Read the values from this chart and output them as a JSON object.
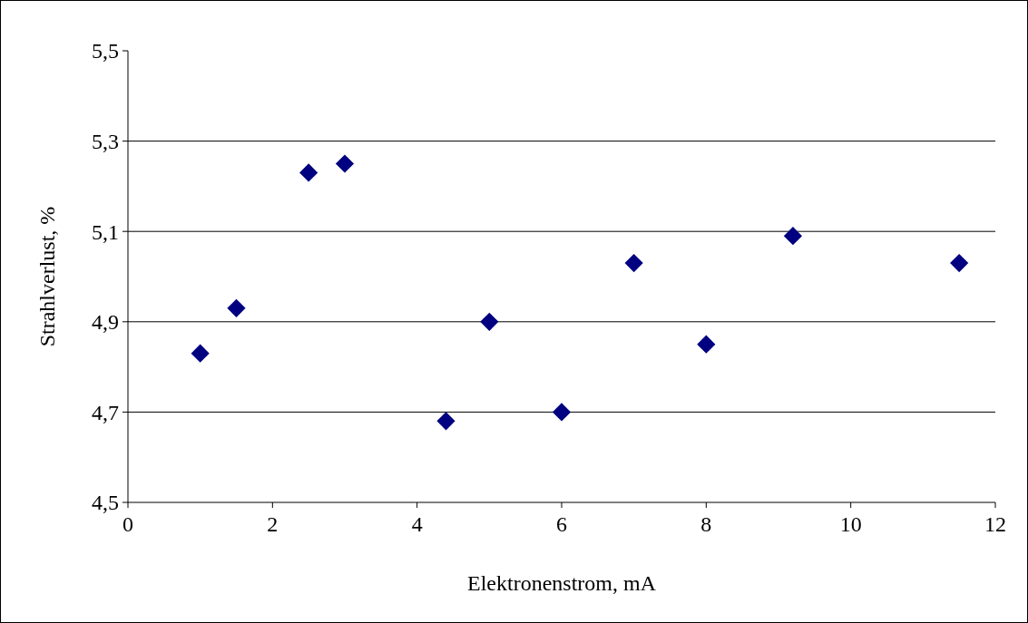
{
  "chart_data": {
    "type": "scatter",
    "xlabel": "Elektronenstrom, mA",
    "ylabel": "Strahlverlust, %",
    "x": [
      1,
      1.5,
      2.5,
      3,
      4.4,
      5,
      6,
      7,
      8,
      9.2,
      11.5
    ],
    "series": [
      {
        "color": "#000080",
        "values": [
          4.83,
          4.93,
          5.23,
          5.25,
          4.68,
          4.9,
          4.7,
          5.03,
          4.85,
          5.09,
          5.03
        ]
      }
    ],
    "xlim": [
      0,
      12
    ],
    "xticks": [
      0,
      2,
      4,
      6,
      8,
      10,
      12
    ],
    "ylim": [
      4.5,
      5.5
    ],
    "yticks": [
      {
        "value": 4.5,
        "label": "4,5"
      },
      {
        "value": 4.7,
        "label": "4,7"
      },
      {
        "value": 4.9,
        "label": "4,9"
      },
      {
        "value": 5.1,
        "label": "5,1"
      },
      {
        "value": 5.3,
        "label": "5,3"
      },
      {
        "value": 5.5,
        "label": "5,5"
      }
    ],
    "grid": "y",
    "marker": "diamond"
  }
}
